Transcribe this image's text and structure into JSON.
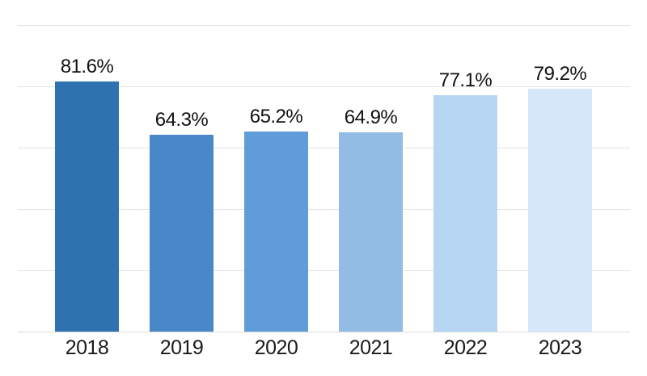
{
  "chart_data": {
    "type": "bar",
    "title": "",
    "xlabel": "",
    "ylabel": "",
    "categories": [
      "2018",
      "2019",
      "2020",
      "2021",
      "2022",
      "2023"
    ],
    "values": [
      81.6,
      64.3,
      65.2,
      64.9,
      77.1,
      79.2
    ],
    "value_labels": [
      "81.6%",
      "64.3%",
      "65.2%",
      "64.9%",
      "77.1%",
      "79.2%"
    ],
    "bar_colors": [
      "#2E72AF",
      "#4A87C8",
      "#609CD8",
      "#92BCE4",
      "#B7D6F4",
      "#D8E8FB"
    ],
    "ylim": [
      0,
      100
    ],
    "grid": true,
    "gridline_step": 20,
    "gridline_color": "#E2E2E2",
    "baseline_color": "#DCDCDC",
    "legend_position": "none",
    "background_color": "#FFFFFF",
    "label_color": "#111111",
    "tick_label_color": "#1A1A1A"
  }
}
